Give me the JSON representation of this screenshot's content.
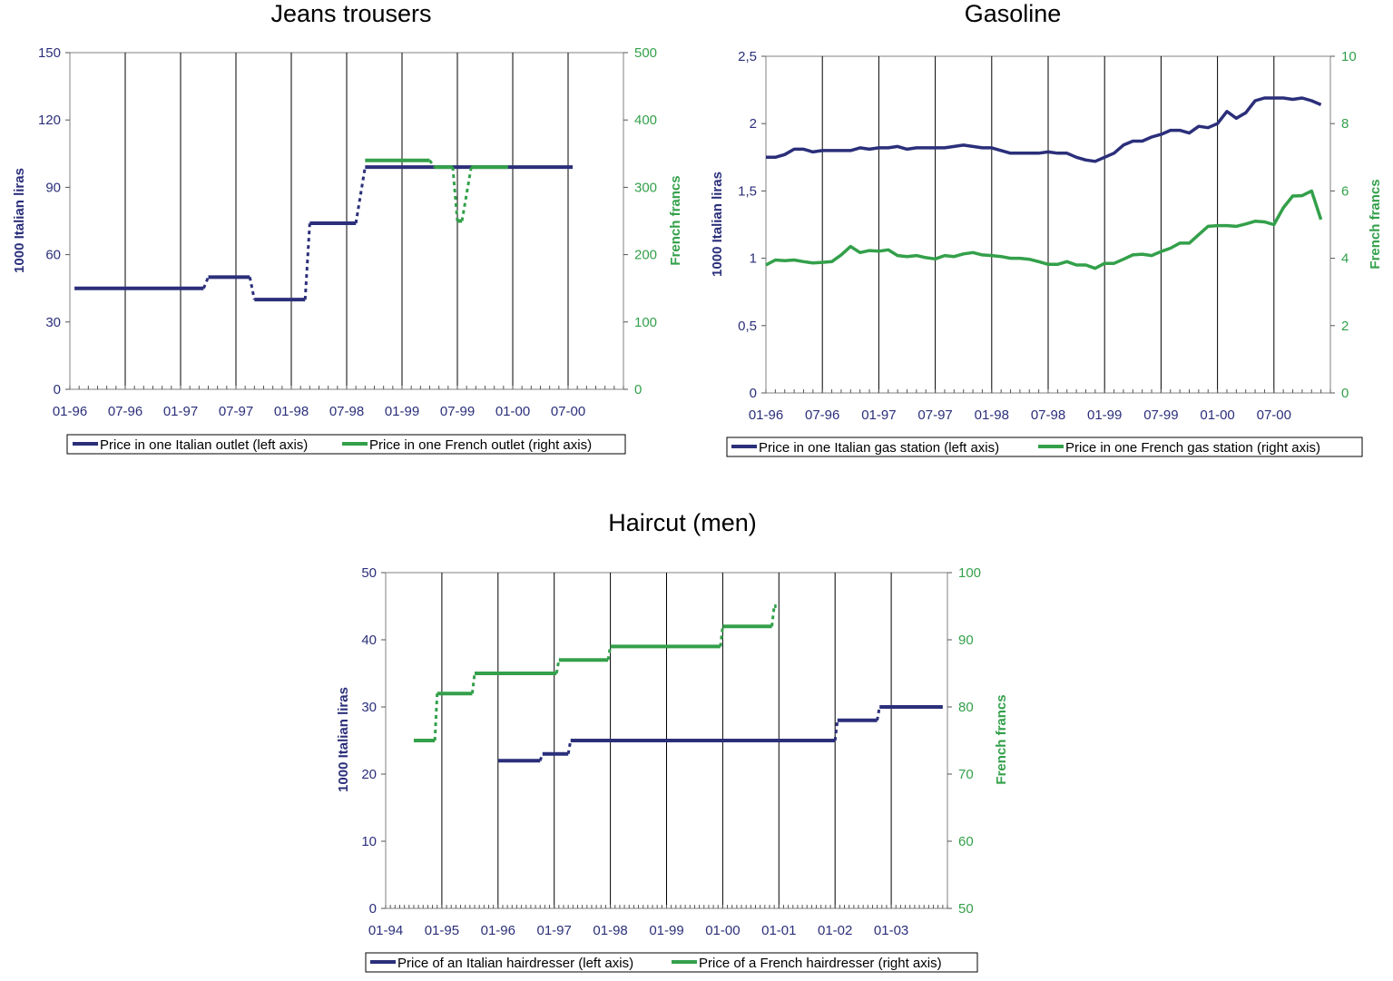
{
  "colors": {
    "italian": "#2b2f7a",
    "french": "#33a04a",
    "grid": "#000000",
    "axis_text_left": "#2b2f7a",
    "axis_text_right": "#33a04a"
  },
  "charts": [
    {
      "title": "Jeans trousers",
      "ylabel_left": "1000 Italian liras",
      "ylabel_right": "French francs",
      "x_tick_labels": [
        "01-96",
        "07-96",
        "01-97",
        "07-97",
        "01-98",
        "07-98",
        "01-99",
        "07-99",
        "01-00",
        "07-00"
      ],
      "y_left_ticks": [
        "0",
        "30",
        "60",
        "90",
        "120",
        "150"
      ],
      "y_right_ticks": [
        "0",
        "100",
        "200",
        "300",
        "400",
        "500"
      ],
      "legend": [
        "Price in one Italian outlet (left axis)",
        "Price in one French outlet (right axis)"
      ]
    },
    {
      "title": "Gasoline",
      "ylabel_left": "1000 Italian liras",
      "ylabel_right": "French francs",
      "x_tick_labels": [
        "01-96",
        "07-96",
        "01-97",
        "07-97",
        "01-98",
        "07-98",
        "01-99",
        "07-99",
        "01-00",
        "07-00"
      ],
      "y_left_ticks": [
        "0",
        "0,5",
        "1",
        "1,5",
        "2",
        "2,5"
      ],
      "y_right_ticks": [
        "0",
        "2",
        "4",
        "6",
        "8",
        "10"
      ],
      "legend": [
        "Price in one Italian gas station (left axis)",
        "Price in one French  gas station (right axis)"
      ]
    },
    {
      "title": "Haircut (men)",
      "ylabel_left": "1000 Italian liras",
      "ylabel_right": "French francs",
      "x_tick_labels": [
        "01-94",
        "01-95",
        "01-96",
        "01-97",
        "01-98",
        "01-99",
        "01-00",
        "01-01",
        "01-02",
        "01-03"
      ],
      "y_left_ticks": [
        "0",
        "10",
        "20",
        "30",
        "40",
        "50"
      ],
      "y_right_ticks": [
        "50",
        "60",
        "70",
        "80",
        "90",
        "100"
      ],
      "legend": [
        "Price of an Italian hairdresser (left axis)",
        "Price of a French hairdresser (right axis)"
      ]
    }
  ],
  "chart_data": [
    {
      "type": "line",
      "title": "Jeans trousers",
      "x_unit": "months since 01-96",
      "xlim": [
        0,
        60
      ],
      "ylim_left": [
        0,
        150
      ],
      "ylim_right": [
        0,
        500
      ],
      "series": [
        {
          "name": "Price in one Italian outlet (left axis)",
          "axis": "left",
          "segments": [
            {
              "x": [
                0.5,
                14.5
              ],
              "y": [
                45,
                45
              ]
            },
            {
              "x": [
                15,
                19.5
              ],
              "y": [
                50,
                50
              ]
            },
            {
              "x": [
                20,
                25.5
              ],
              "y": [
                40,
                40
              ]
            },
            {
              "x": [
                26,
                31
              ],
              "y": [
                74,
                74
              ]
            },
            {
              "x": [
                32,
                54.5
              ],
              "y": [
                99,
                99
              ]
            }
          ]
        },
        {
          "name": "Price in one French outlet (right axis)",
          "axis": "right",
          "segments": [
            {
              "x": [
                32,
                39
              ],
              "y": [
                340,
                340
              ]
            },
            {
              "x": [
                39.5,
                41.5
              ],
              "y": [
                330,
                330
              ]
            },
            {
              "x": [
                42,
                42.5
              ],
              "y": [
                250,
                250
              ]
            },
            {
              "x": [
                43.5,
                47.5
              ],
              "y": [
                330,
                330
              ]
            }
          ]
        }
      ]
    },
    {
      "type": "line",
      "title": "Gasoline",
      "x_unit": "months since 01-96",
      "xlim": [
        0,
        60
      ],
      "ylim_left": [
        0,
        2.5
      ],
      "ylim_right": [
        0,
        10
      ],
      "series": [
        {
          "name": "Price in one Italian gas station (left axis)",
          "axis": "left",
          "x": [
            0,
            1,
            2,
            3,
            4,
            5,
            6,
            7,
            8,
            9,
            10,
            11,
            12,
            13,
            14,
            15,
            16,
            17,
            18,
            19,
            20,
            21,
            22,
            23,
            24,
            25,
            26,
            27,
            28,
            29,
            30,
            31,
            32,
            33,
            34,
            35,
            36,
            37,
            38,
            39,
            40,
            41,
            42,
            43,
            44,
            45,
            46,
            47,
            48,
            49,
            50,
            51,
            52,
            53,
            54,
            55,
            56,
            57,
            58,
            59
          ],
          "y": [
            1.75,
            1.75,
            1.77,
            1.81,
            1.81,
            1.79,
            1.8,
            1.8,
            1.8,
            1.8,
            1.82,
            1.81,
            1.82,
            1.82,
            1.83,
            1.81,
            1.82,
            1.82,
            1.82,
            1.82,
            1.83,
            1.84,
            1.83,
            1.82,
            1.82,
            1.8,
            1.78,
            1.78,
            1.78,
            1.78,
            1.79,
            1.78,
            1.78,
            1.75,
            1.73,
            1.72,
            1.75,
            1.78,
            1.84,
            1.87,
            1.87,
            1.9,
            1.92,
            1.95,
            1.95,
            1.93,
            1.98,
            1.97,
            2.0,
            2.09,
            2.04,
            2.08,
            2.17,
            2.19,
            2.19,
            2.19,
            2.18,
            2.19,
            2.17,
            2.14
          ]
        },
        {
          "name": "Price in one French  gas station (right axis)",
          "axis": "right",
          "x": [
            0,
            1,
            2,
            3,
            4,
            5,
            6,
            7,
            8,
            9,
            10,
            11,
            12,
            13,
            14,
            15,
            16,
            17,
            18,
            19,
            20,
            21,
            22,
            23,
            24,
            25,
            26,
            27,
            28,
            29,
            30,
            31,
            32,
            33,
            34,
            35,
            36,
            37,
            38,
            39,
            40,
            41,
            42,
            43,
            44,
            45,
            46,
            47,
            48,
            49,
            50,
            51,
            52,
            53,
            54,
            55,
            56,
            57,
            58,
            59
          ],
          "y": [
            3.8,
            3.95,
            3.93,
            3.95,
            3.9,
            3.86,
            3.88,
            3.9,
            4.1,
            4.35,
            4.17,
            4.23,
            4.21,
            4.25,
            4.08,
            4.05,
            4.08,
            4.02,
            3.98,
            4.08,
            4.05,
            4.13,
            4.17,
            4.1,
            4.08,
            4.05,
            4.0,
            4.0,
            3.97,
            3.9,
            3.82,
            3.82,
            3.9,
            3.8,
            3.8,
            3.7,
            3.85,
            3.85,
            3.97,
            4.1,
            4.12,
            4.08,
            4.2,
            4.3,
            4.45,
            4.45,
            4.7,
            4.95,
            4.97,
            4.97,
            4.95,
            5.02,
            5.1,
            5.08,
            5.0,
            5.5,
            5.85,
            5.86,
            6.0,
            5.15
          ]
        }
      ]
    },
    {
      "type": "line",
      "title": "Haircut (men)",
      "x_unit": "months since 01-94",
      "xlim": [
        0,
        120
      ],
      "ylim_left": [
        0,
        50
      ],
      "ylim_right": [
        50,
        100
      ],
      "series": [
        {
          "name": "Price of an Italian hairdresser (left axis)",
          "axis": "left",
          "segments": [
            {
              "x": [
                24,
                33
              ],
              "y": [
                22,
                22
              ]
            },
            {
              "x": [
                33.5,
                39
              ],
              "y": [
                23,
                23
              ]
            },
            {
              "x": [
                39.5,
                96
              ],
              "y": [
                25,
                25
              ]
            },
            {
              "x": [
                96.5,
                105
              ],
              "y": [
                28,
                28
              ]
            },
            {
              "x": [
                105.5,
                119
              ],
              "y": [
                30,
                30
              ]
            }
          ]
        },
        {
          "name": "Price of a French hairdresser (right axis)",
          "axis": "right",
          "segments": [
            {
              "x": [
                6,
                10.5
              ],
              "y": [
                75,
                75
              ]
            },
            {
              "x": [
                11,
                18.5
              ],
              "y": [
                82,
                82
              ]
            },
            {
              "x": [
                19,
                36.5
              ],
              "y": [
                85,
                85
              ]
            },
            {
              "x": [
                37,
                47.5
              ],
              "y": [
                87,
                87
              ]
            },
            {
              "x": [
                48,
                71.5
              ],
              "y": [
                89,
                89
              ]
            },
            {
              "x": [
                72,
                82.5
              ],
              "y": [
                92,
                92
              ]
            },
            {
              "x": [
                83,
                83.5
              ],
              "y": [
                95,
                95
              ]
            }
          ]
        }
      ]
    }
  ]
}
